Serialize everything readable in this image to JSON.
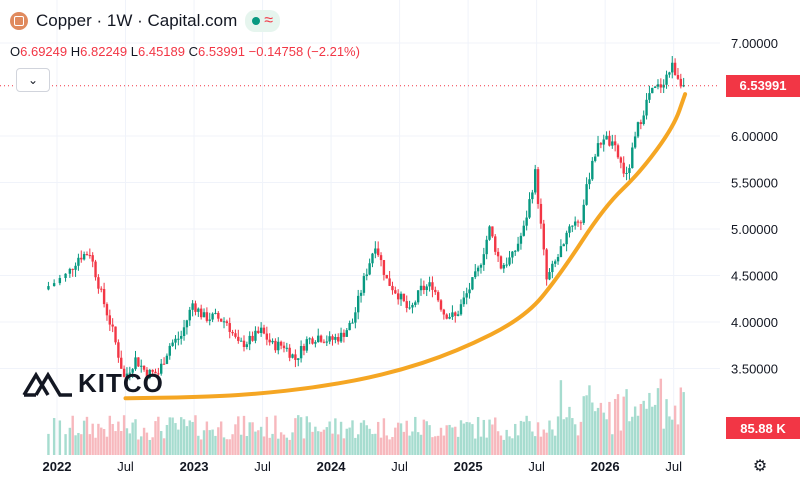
{
  "header": {
    "title": "Copper · 1W · Capital.com",
    "ohlc": {
      "o_label": "O",
      "o": "6.69249",
      "h_label": "H",
      "h": "6.82249",
      "l_label": "L",
      "l": "6.45189",
      "c_label": "C",
      "c": "6.53991",
      "change": "−0.14758 (−2.21%)"
    },
    "collapse_icon": "chevron-down-icon",
    "market_status_icons": [
      "live-dot-icon",
      "delayed-wave-icon"
    ]
  },
  "logo": {
    "text": "KITCO"
  },
  "badges": {
    "price": "6.53991",
    "volume": "85.88 K"
  },
  "colors": {
    "up": "#089981",
    "down": "#f23645",
    "trend": "#f5a623",
    "price_badge": "#f23645"
  },
  "chart_data": {
    "type": "line",
    "x_ticks": [
      "2022",
      "Jul",
      "2023",
      "Jul",
      "2024",
      "Jul",
      "2025",
      "Jul",
      "2026",
      "Jul"
    ],
    "y_ticks": [
      "7.00000",
      "6.00000",
      "5.50000",
      "5.00000",
      "4.50000",
      "4.00000",
      "3.50000"
    ],
    "ylim": [
      3.1,
      7.2
    ],
    "grid": true,
    "last_price": 6.53991,
    "series": [
      {
        "kind": "candlestick",
        "description_points": [
          [
            "2021-12",
            4.35
          ],
          [
            "2022-02",
            4.5
          ],
          [
            "2022-03",
            4.7
          ],
          [
            "2022-04",
            4.75
          ],
          [
            "2022-05",
            4.3
          ],
          [
            "2022-06",
            3.9
          ],
          [
            "2022-07",
            3.4
          ],
          [
            "2022-08",
            3.6
          ],
          [
            "2022-09",
            3.45
          ],
          [
            "2022-10",
            3.45
          ],
          [
            "2022-11",
            3.75
          ],
          [
            "2022-12",
            3.85
          ],
          [
            "2023-01",
            4.2
          ],
          [
            "2023-02",
            4.05
          ],
          [
            "2023-03",
            4.05
          ],
          [
            "2023-04",
            4.0
          ],
          [
            "2023-05",
            3.75
          ],
          [
            "2023-06",
            3.8
          ],
          [
            "2023-07",
            3.9
          ],
          [
            "2023-08",
            3.75
          ],
          [
            "2023-09",
            3.75
          ],
          [
            "2023-10",
            3.6
          ],
          [
            "2023-11",
            3.8
          ],
          [
            "2023-12",
            3.85
          ],
          [
            "2024-01",
            3.8
          ],
          [
            "2024-02",
            3.85
          ],
          [
            "2024-03",
            4.0
          ],
          [
            "2024-04",
            4.45
          ],
          [
            "2024-05",
            4.85
          ],
          [
            "2024-06",
            4.45
          ],
          [
            "2024-07",
            4.3
          ],
          [
            "2024-08",
            4.1
          ],
          [
            "2024-09",
            4.35
          ],
          [
            "2024-10",
            4.4
          ],
          [
            "2024-11",
            4.1
          ],
          [
            "2024-12",
            4.05
          ],
          [
            "2025-01",
            4.3
          ],
          [
            "2025-02",
            4.55
          ],
          [
            "2025-03",
            5.0
          ],
          [
            "2025-04",
            4.6
          ],
          [
            "2025-05",
            4.7
          ],
          [
            "2025-06",
            5.0
          ],
          [
            "2025-07",
            5.6
          ],
          [
            "2025-08",
            4.45
          ],
          [
            "2025-09",
            4.7
          ],
          [
            "2025-10",
            5.05
          ],
          [
            "2025-11",
            5.1
          ],
          [
            "2025-12",
            5.75
          ],
          [
            "2026-01",
            6.0
          ],
          [
            "2026-02",
            5.85
          ],
          [
            "2026-03",
            5.55
          ],
          [
            "2026-04",
            6.1
          ],
          [
            "2026-05",
            6.45
          ],
          [
            "2026-06",
            6.55
          ],
          [
            "2026-07",
            6.75
          ],
          [
            "2026-08",
            6.54
          ]
        ]
      },
      {
        "kind": "trendline",
        "points": [
          [
            "2022-07",
            3.18
          ],
          [
            "2023-01",
            3.19
          ],
          [
            "2023-06",
            3.22
          ],
          [
            "2023-12",
            3.3
          ],
          [
            "2024-06",
            3.44
          ],
          [
            "2024-12",
            3.68
          ],
          [
            "2025-06",
            4.05
          ],
          [
            "2025-09",
            4.5
          ],
          [
            "2026-01",
            5.25
          ],
          [
            "2026-04",
            5.6
          ],
          [
            "2026-07",
            6.1
          ],
          [
            "2026-08",
            6.45
          ]
        ]
      }
    ]
  }
}
